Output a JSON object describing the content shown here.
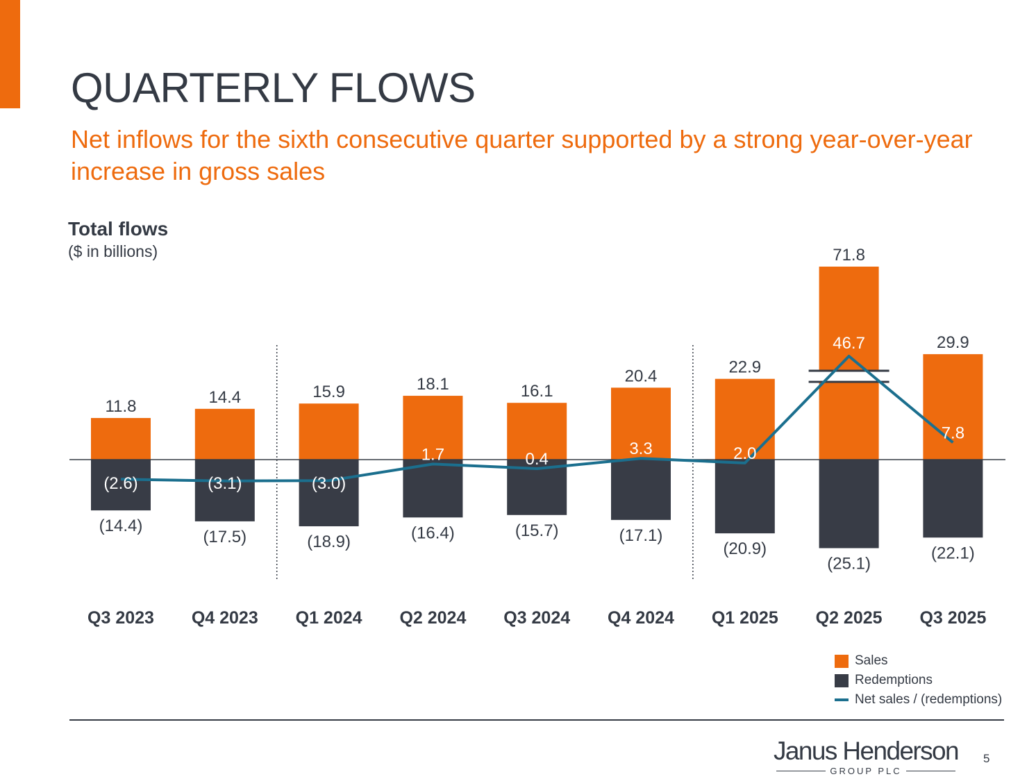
{
  "slide": {
    "title": "QUARTERLY FLOWS",
    "subtitle": "Net inflows for the sixth consecutive quarter supported by a strong year-over-year increase in gross sales",
    "page_number": "5",
    "accent_color": "#ee6b0e",
    "text_color": "#343a44"
  },
  "logo": {
    "name": "Janus Henderson",
    "sub": "GROUP PLC"
  },
  "chart_data": {
    "type": "bar",
    "title": "Total flows",
    "units": "($ in billions)",
    "categories": [
      "Q3 2023",
      "Q4 2023",
      "Q1 2024",
      "Q2 2024",
      "Q3 2024",
      "Q4 2024",
      "Q1 2025",
      "Q2 2025",
      "Q3 2025"
    ],
    "series": [
      {
        "name": "Sales",
        "type": "bar",
        "color": "#ee6b0e",
        "values": [
          11.8,
          14.4,
          15.9,
          18.1,
          16.1,
          20.4,
          22.9,
          71.8,
          29.9
        ],
        "labels": [
          "11.8",
          "14.4",
          "15.9",
          "18.1",
          "16.1",
          "20.4",
          "22.9",
          "71.8",
          "29.9"
        ]
      },
      {
        "name": "Redemptions",
        "type": "bar",
        "color": "#383c46",
        "values": [
          -14.4,
          -17.5,
          -18.9,
          -16.4,
          -15.7,
          -17.1,
          -20.9,
          -25.1,
          -22.1
        ],
        "labels": [
          "(14.4)",
          "(17.5)",
          "(18.9)",
          "(16.4)",
          "(15.7)",
          "(17.1)",
          "(20.9)",
          "(25.1)",
          "(22.1)"
        ]
      },
      {
        "name": "Net sales / (redemptions)",
        "type": "line",
        "color": "#1b6f8e",
        "values": [
          -2.6,
          -3.1,
          -3.0,
          1.7,
          0.4,
          3.3,
          2.0,
          46.7,
          7.8
        ],
        "labels": [
          "(2.6)",
          "(3.1)",
          "(3.0)",
          "1.7",
          "0.4",
          "3.3",
          "2.0",
          "46.7",
          "7.8"
        ]
      }
    ],
    "axis_break": {
      "category": "Q2 2025"
    },
    "period_dividers_after": [
      "Q4 2023",
      "Q4 2024"
    ],
    "legend_position": "bottom-right",
    "grid": false
  }
}
